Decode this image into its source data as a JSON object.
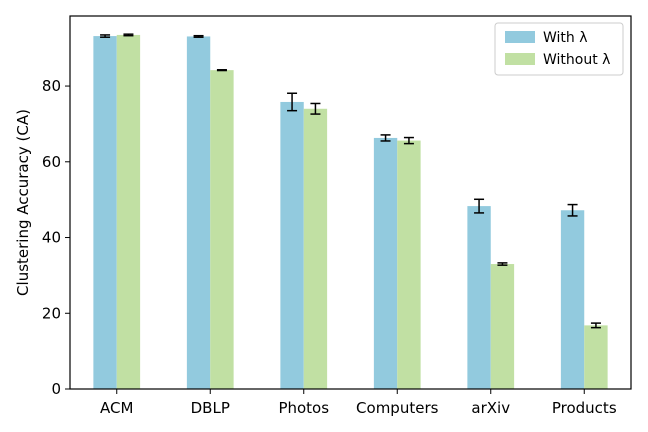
{
  "chart_data": {
    "type": "bar",
    "title": "",
    "xlabel": "",
    "ylabel": "Clustering Accuracy (CA)",
    "categories": [
      "ACM",
      "DBLP",
      "Photos",
      "Computers",
      "arXiv",
      "Products"
    ],
    "series": [
      {
        "name": "With λ",
        "color": "#92cade",
        "values": [
          93.2,
          93.1,
          75.8,
          66.3,
          48.3,
          47.2
        ],
        "errors": [
          0.3,
          0.2,
          2.3,
          0.8,
          1.8,
          1.5
        ]
      },
      {
        "name": "Without λ",
        "color": "#c1e0a3",
        "values": [
          93.5,
          84.2,
          74.0,
          65.6,
          33.0,
          16.8
        ],
        "errors": [
          0.2,
          0.1,
          1.4,
          0.8,
          0.3,
          0.6
        ]
      }
    ],
    "ylim": [
      0,
      98.5
    ],
    "yticks": [
      0,
      20,
      40,
      60,
      80
    ],
    "grid": false,
    "legend_position": "top-right"
  }
}
